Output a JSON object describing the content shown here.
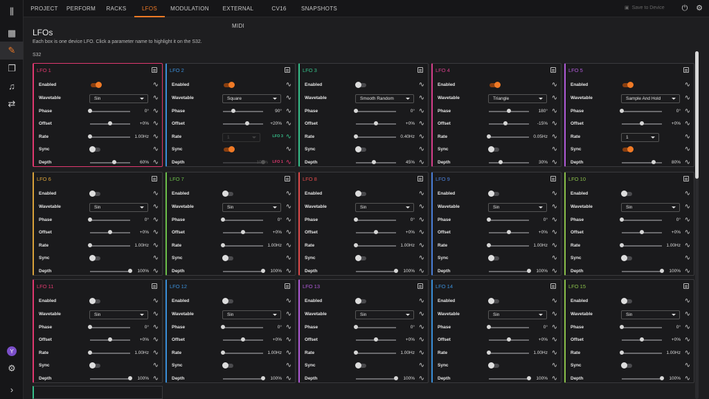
{
  "tabs": [
    "PROJECT",
    "PERFORM",
    "RACKS",
    "LFOS",
    "MODULATION",
    "EXTERNAL MIDI",
    "CV16",
    "SNAPSHOTS"
  ],
  "active_tab": "LFOS",
  "save_label": "Save to Device",
  "avatar_letter": "Y",
  "page": {
    "title": "LFOs",
    "subtitle": "Each box is one device LFO. Click a parameter name to highlight it on the S32.",
    "device": "S32"
  },
  "labels": {
    "enabled": "Enabled",
    "wavetable": "Wavetable",
    "phase": "Phase",
    "offset": "Offset",
    "rate": "Rate",
    "sync": "Sync",
    "depth": "Depth"
  },
  "colors": {
    "accent": "#f07a26",
    "lfo_colors": [
      "#e0386f",
      "#3a8fd9",
      "#36c08a",
      "#d63f8c",
      "#b05ad8",
      "#d9a23a",
      "#6cc04a",
      "#e04a4a",
      "#4a7fd9",
      "#8ac04a",
      "#e0386f",
      "#3a8fd9",
      "#b05ad8",
      "#3a8fd9",
      "#8ac04a"
    ]
  },
  "lfos": [
    {
      "title": "LFO 1",
      "enabled": true,
      "wavetable": "Sin",
      "phase": "0°",
      "phase_pct": 0,
      "offset": "+0%",
      "offset_pct": 50,
      "rate": "1.00Hz",
      "rate_pct": 0,
      "sync": false,
      "depth": "60%",
      "depth_pct": 60
    },
    {
      "title": "LFO 2",
      "enabled": true,
      "wavetable": "Square",
      "phase": "90°",
      "phase_pct": 25,
      "offset": "+20%",
      "offset_pct": 60,
      "rate": "1",
      "rate_pct": 0,
      "rate_disabled": true,
      "rate_link": "LFO 3",
      "sync": true,
      "depth": "100%",
      "depth_pct": 100,
      "depth_disabled": true,
      "depth_link": "LFO 1"
    },
    {
      "title": "LFO 3",
      "enabled": false,
      "wavetable": "Smooth Random",
      "phase": "0°",
      "phase_pct": 0,
      "offset": "+0%",
      "offset_pct": 50,
      "rate": "0.40Hz",
      "rate_pct": 0,
      "sync": false,
      "depth": "45%",
      "depth_pct": 45
    },
    {
      "title": "LFO 4",
      "enabled": true,
      "wavetable": "Triangle",
      "phase": "180°",
      "phase_pct": 50,
      "offset": "-15%",
      "offset_pct": 42,
      "rate": "0.05Hz",
      "rate_pct": 0,
      "sync": false,
      "depth": "30%",
      "depth_pct": 30
    },
    {
      "title": "LFO 5",
      "enabled": true,
      "wavetable": "Sample And Hold",
      "phase": "0°",
      "phase_pct": 0,
      "offset": "+0%",
      "offset_pct": 50,
      "rate": "1",
      "rate_pct": 0,
      "rate_select": true,
      "sync": true,
      "depth": "80%",
      "depth_pct": 80
    },
    {
      "title": "LFO 6",
      "enabled": false,
      "wavetable": "Sin",
      "phase": "0°",
      "phase_pct": 0,
      "offset": "+0%",
      "offset_pct": 50,
      "rate": "1.00Hz",
      "rate_pct": 0,
      "sync": false,
      "depth": "100%",
      "depth_pct": 100
    },
    {
      "title": "LFO 7",
      "enabled": false,
      "wavetable": "Sin",
      "phase": "0°",
      "phase_pct": 0,
      "offset": "+0%",
      "offset_pct": 50,
      "rate": "1.00Hz",
      "rate_pct": 0,
      "sync": false,
      "depth": "100%",
      "depth_pct": 100
    },
    {
      "title": "LFO 8",
      "enabled": false,
      "wavetable": "Sin",
      "phase": "0°",
      "phase_pct": 0,
      "offset": "+0%",
      "offset_pct": 50,
      "rate": "1.00Hz",
      "rate_pct": 0,
      "sync": false,
      "depth": "100%",
      "depth_pct": 100
    },
    {
      "title": "LFO 9",
      "enabled": false,
      "wavetable": "Sin",
      "phase": "0°",
      "phase_pct": 0,
      "offset": "+0%",
      "offset_pct": 50,
      "rate": "1.00Hz",
      "rate_pct": 0,
      "sync": false,
      "depth": "100%",
      "depth_pct": 100
    },
    {
      "title": "LFO 10",
      "enabled": false,
      "wavetable": "Sin",
      "phase": "0°",
      "phase_pct": 0,
      "offset": "+0%",
      "offset_pct": 50,
      "rate": "1.00Hz",
      "rate_pct": 0,
      "sync": false,
      "depth": "100%",
      "depth_pct": 100
    },
    {
      "title": "LFO 11",
      "enabled": false,
      "wavetable": "Sin",
      "phase": "0°",
      "phase_pct": 0,
      "offset": "+0%",
      "offset_pct": 50,
      "rate": "1.00Hz",
      "rate_pct": 0,
      "sync": false,
      "depth": "100%",
      "depth_pct": 100
    },
    {
      "title": "LFO 12",
      "enabled": false,
      "wavetable": "Sin",
      "phase": "0°",
      "phase_pct": 0,
      "offset": "+0%",
      "offset_pct": 50,
      "rate": "1.00Hz",
      "rate_pct": 0,
      "sync": false,
      "depth": "100%",
      "depth_pct": 100
    },
    {
      "title": "LFO 13",
      "enabled": false,
      "wavetable": "Sin",
      "phase": "0°",
      "phase_pct": 0,
      "offset": "+0%",
      "offset_pct": 50,
      "rate": "1.00Hz",
      "rate_pct": 0,
      "sync": false,
      "depth": "100%",
      "depth_pct": 100
    },
    {
      "title": "LFO 14",
      "enabled": false,
      "wavetable": "Sin",
      "phase": "0°",
      "phase_pct": 0,
      "offset": "+0%",
      "offset_pct": 50,
      "rate": "1.00Hz",
      "rate_pct": 0,
      "sync": false,
      "depth": "100%",
      "depth_pct": 100
    },
    {
      "title": "LFO 15",
      "enabled": false,
      "wavetable": "Sin",
      "phase": "0°",
      "phase_pct": 0,
      "offset": "+0%",
      "offset_pct": 50,
      "rate": "1.00Hz",
      "rate_pct": 0,
      "sync": false,
      "depth": "100%",
      "depth_pct": 100
    }
  ]
}
